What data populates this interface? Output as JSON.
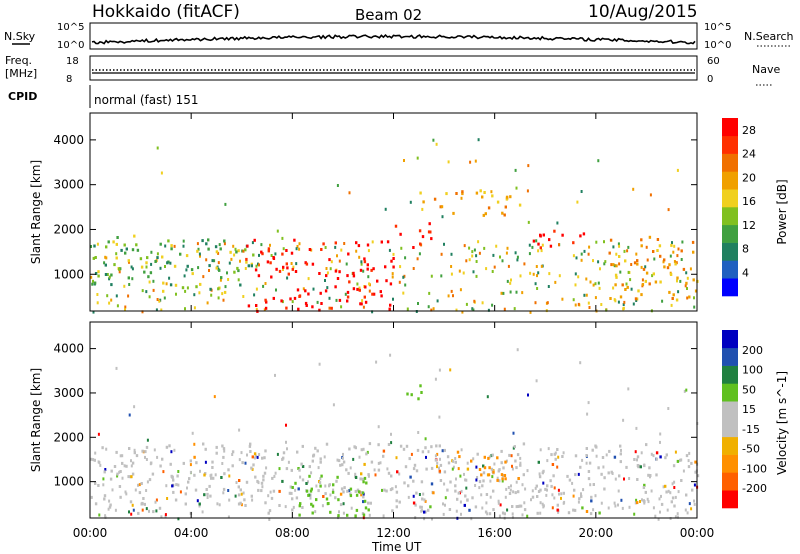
{
  "header": {
    "station": "Hokkaido (fitACF)",
    "beam": "Beam 02",
    "date": "10/Aug/2015"
  },
  "side_labels": {
    "nsky": "N.Sky",
    "nsearch": "N.Search",
    "freq_line1": "Freq.",
    "freq_line2": "[MHz]",
    "nave": "Nave",
    "cpid": "CPID",
    "cpid_value": "normal (fast) 151"
  },
  "mini_axes": {
    "noise_left_ticks": [
      "10^5",
      "10^0"
    ],
    "noise_right_ticks": [
      "10^5",
      "10^0"
    ],
    "freq_ticks": [
      "18",
      "8"
    ],
    "nave_ticks": [
      "60",
      "0"
    ]
  },
  "colors": {
    "power": [
      "#0000ff",
      "#2060c0",
      "#208060",
      "#40a040",
      "#80c020",
      "#f0d020",
      "#f0a000",
      "#f07000",
      "#ff3000",
      "#ff0000"
    ],
    "velocity": [
      "#ff0000",
      "#ff6000",
      "#ff9000",
      "#f0b000",
      "#c0c0c0",
      "#c0c0c0",
      "#60c020",
      "#208040",
      "#2050b0",
      "#0000c0"
    ]
  },
  "chart_data": [
    {
      "type": "heatmap",
      "panel": "power",
      "ylabel": "Slant Range [km]",
      "ylim": [
        180,
        4600
      ],
      "y_ticks": [
        1000,
        2000,
        3000,
        4000
      ],
      "x_ticks": [
        "00:00",
        "04:00",
        "08:00",
        "12:00",
        "16:00",
        "20:00",
        "00:00"
      ],
      "xlim_hours": [
        0,
        24
      ],
      "colorbar": {
        "label": "Power [dB]",
        "ticks": [
          4,
          8,
          12,
          16,
          20,
          24,
          28
        ],
        "range": [
          0,
          30
        ]
      },
      "regions": [
        {
          "hours": [
            0.1,
            6.5
          ],
          "range_km": [
            600,
            1900
          ],
          "level": "12-20 dB"
        },
        {
          "hours": [
            6.0,
            12.0
          ],
          "range_km": [
            200,
            1800
          ],
          "level": "24-30 dB"
        },
        {
          "hours": [
            12.0,
            13.5
          ],
          "range_km": [
            1600,
            2200
          ],
          "level": "28-30 dB"
        },
        {
          "hours": [
            13.0,
            17.0
          ],
          "range_km": [
            2300,
            2900
          ],
          "level": "16-24 dB"
        },
        {
          "hours": [
            17.5,
            19.5
          ],
          "range_km": [
            1600,
            2200
          ],
          "level": "24-30 dB"
        },
        {
          "hours": [
            20.5,
            24.0
          ],
          "range_km": [
            400,
            1900
          ],
          "level": "16-24 dB"
        }
      ]
    },
    {
      "type": "heatmap",
      "panel": "velocity",
      "xlabel": "Time UT",
      "ylabel": "Slant Range [km]",
      "ylim": [
        180,
        4600
      ],
      "y_ticks": [
        1000,
        2000,
        3000,
        4000
      ],
      "x_ticks": [
        "00:00",
        "04:00",
        "08:00",
        "12:00",
        "16:00",
        "20:00",
        "00:00"
      ],
      "xlim_hours": [
        0,
        24
      ],
      "colorbar": {
        "label": "Velocity [m s^-1]",
        "ticks": [
          -200,
          -100,
          -50,
          -15,
          15,
          50,
          100,
          200
        ],
        "range": [
          -250,
          250
        ]
      },
      "regions": [
        {
          "hours": [
            0.1,
            24.0
          ],
          "range_km": [
            300,
            1900
          ],
          "level": "-15 to 15 m/s"
        },
        {
          "hours": [
            7.5,
            11.0
          ],
          "range_km": [
            200,
            1200
          ],
          "level": "15-50 m/s"
        },
        {
          "hours": [
            12.0,
            13.5
          ],
          "range_km": [
            2900,
            3200
          ],
          "level": "150-250 m/s"
        },
        {
          "hours": [
            14.5,
            17.0
          ],
          "range_km": [
            1000,
            1700
          ],
          "level": "-50 to -100 m/s"
        }
      ]
    }
  ]
}
